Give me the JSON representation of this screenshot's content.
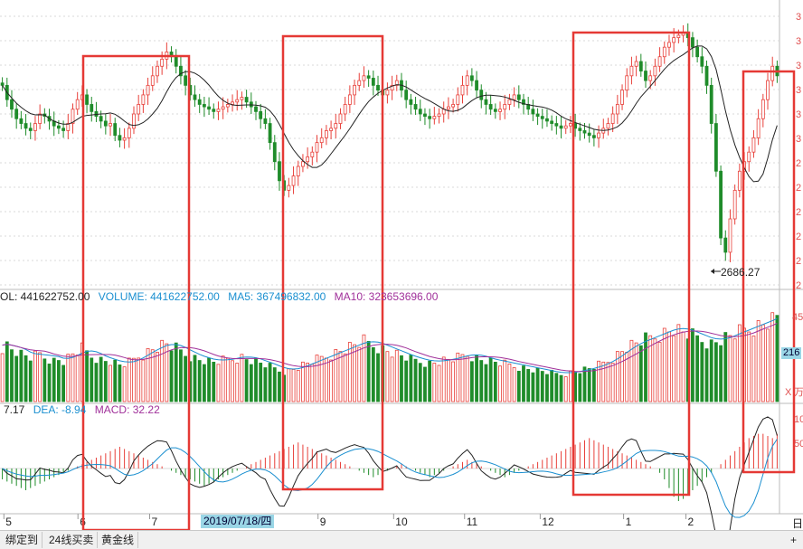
{
  "colors": {
    "up": "#e8403a",
    "down": "#1f8c2a",
    "ma_line": "#222222",
    "vol_ma5": "#1a8fd0",
    "vol_ma10": "#a0309a",
    "dea": "#1a8fd0",
    "highlight": "#e53935",
    "grid": "#d9d9d9",
    "axis_text": "#e05050"
  },
  "volume_legend": {
    "vol": "OL: 441622752.00",
    "volume": "VOLUME: 441622752.00",
    "ma5": "MA5: 367496832.00",
    "ma10": "MA10: 323653696.00"
  },
  "macd_legend": {
    "dif": "7.17",
    "dea": "DEA: -8.94",
    "macd": "MACD: 32.22"
  },
  "low_annotation": "2686.27",
  "right_axis": {
    "volume_top_label": "45",
    "volume_current": "216",
    "close_x": "X",
    "wan": "万",
    "macd_label_1": "10",
    "macd_label_2": "50",
    "corner": "日",
    "plus": "+"
  },
  "x_axis_labels": [
    {
      "label": "5",
      "pos": 0.005
    },
    {
      "label": "6",
      "pos": 0.1
    },
    {
      "label": "7",
      "pos": 0.192
    },
    {
      "label": "9",
      "pos": 0.408
    },
    {
      "label": "10",
      "pos": 0.505
    },
    {
      "label": "11",
      "pos": 0.596
    },
    {
      "label": "12",
      "pos": 0.693
    },
    {
      "label": "1",
      "pos": 0.8
    },
    {
      "label": "2",
      "pos": 0.88
    }
  ],
  "cursor_date": "2019/07/18/四",
  "bottom_tabs": [
    "绑定到",
    "24线买卖",
    "黄金线"
  ],
  "chart_data": {
    "type": "candlestick",
    "price_axis_tick_labels": [
      "3",
      "3",
      "3",
      "3",
      "3",
      "3",
      "2",
      "2",
      "2",
      "2",
      "2",
      "2"
    ],
    "low_marker": 2686.27,
    "highlight_boxes": 4,
    "price_series": [
      3040,
      3010,
      2990,
      2970,
      2960,
      2950,
      2945,
      2960,
      2980,
      2975,
      2965,
      2955,
      2950,
      2945,
      2960,
      2990,
      3010,
      3020,
      3000,
      2985,
      2975,
      2965,
      2955,
      2960,
      2935,
      2925,
      2930,
      2950,
      2980,
      3000,
      3020,
      3040,
      3060,
      3080,
      3095,
      3110,
      3100,
      3080,
      3060,
      3040,
      3020,
      3010,
      3000,
      2995,
      2990,
      2985,
      2990,
      2995,
      3000,
      3005,
      3010,
      3015,
      3005,
      2995,
      2985,
      2970,
      2960,
      2920,
      2880,
      2840,
      2820,
      2830,
      2850,
      2870,
      2880,
      2890,
      2900,
      2920,
      2930,
      2945,
      2950,
      2960,
      2980,
      3000,
      3020,
      3040,
      3050,
      3060,
      3055,
      3040,
      3030,
      3020,
      3030,
      3040,
      3050,
      3030,
      3010,
      3000,
      2990,
      2980,
      2975,
      2970,
      2975,
      2980,
      2990,
      2995,
      3000,
      3020,
      3040,
      3060,
      3050,
      3030,
      3010,
      3000,
      2990,
      2985,
      2990,
      3000,
      3010,
      3020,
      3010,
      3000,
      2990,
      2980,
      2975,
      2970,
      2965,
      2960,
      2955,
      2950,
      2955,
      2960,
      2950,
      2945,
      2940,
      2935,
      2930,
      2940,
      2950,
      2960,
      2980,
      3000,
      3030,
      3060,
      3080,
      3090,
      3070,
      3050,
      3060,
      3080,
      3100,
      3120,
      3130,
      3140,
      3145,
      3150,
      3140,
      3120,
      3100,
      3080,
      3040,
      2960,
      2860,
      2720,
      2690,
      2760,
      2820,
      2860,
      2880,
      2900,
      2930,
      2970,
      3010,
      3050,
      3080,
      3060
    ],
    "volume_series": [
      60,
      62,
      58,
      55,
      52,
      50,
      48,
      50,
      52,
      49,
      47,
      45,
      46,
      44,
      48,
      52,
      55,
      58,
      54,
      50,
      48,
      46,
      45,
      44,
      42,
      40,
      41,
      43,
      46,
      50,
      52,
      55,
      58,
      60,
      62,
      63,
      60,
      58,
      55,
      52,
      50,
      48,
      46,
      45,
      44,
      43,
      44,
      45,
      46,
      47,
      48,
      49,
      47,
      45,
      44,
      42,
      40,
      38,
      36,
      34,
      33,
      34,
      36,
      38,
      40,
      42,
      44,
      46,
      48,
      50,
      52,
      54,
      56,
      58,
      60,
      62,
      64,
      66,
      64,
      62,
      60,
      58,
      56,
      54,
      52,
      50,
      48,
      46,
      45,
      44,
      43,
      42,
      43,
      44,
      45,
      46,
      47,
      48,
      50,
      52,
      50,
      48,
      46,
      45,
      44,
      43,
      42,
      41,
      40,
      39,
      38,
      37,
      36,
      35,
      34,
      33,
      32,
      31,
      30,
      30,
      31,
      32,
      33,
      34,
      35,
      36,
      38,
      40,
      42,
      45,
      48,
      52,
      56,
      60,
      62,
      64,
      66,
      68,
      70,
      72,
      74,
      76,
      78,
      80,
      78,
      76,
      74,
      72,
      70,
      68,
      66,
      64,
      66,
      68,
      70,
      72,
      74,
      76,
      78,
      80,
      82,
      84,
      86,
      88,
      90,
      94
    ],
    "macd_series": [
      -10,
      -12,
      -14,
      -16,
      -18,
      -20,
      -18,
      -16,
      -14,
      -12,
      -10,
      -8,
      -6,
      -4,
      -2,
      0,
      2,
      4,
      6,
      8,
      10,
      12,
      14,
      16,
      18,
      20,
      18,
      16,
      14,
      12,
      10,
      8,
      6,
      4,
      2,
      0,
      -2,
      -4,
      -6,
      -8,
      -10,
      -12,
      -14,
      -16,
      -14,
      -12,
      -10,
      -8,
      -6,
      -4,
      -2,
      0,
      2,
      4,
      6,
      8,
      10,
      12,
      14,
      16,
      18,
      20,
      22,
      24,
      22,
      20,
      18,
      16,
      14,
      12,
      10,
      8,
      6,
      4,
      2,
      0,
      -2,
      -4,
      -6,
      -8,
      -6,
      -4,
      -2,
      0,
      2,
      4,
      2,
      0,
      -2,
      -4,
      -6,
      -8,
      -6,
      -4,
      -2,
      0,
      2,
      4,
      6,
      8,
      6,
      4,
      2,
      0,
      -2,
      -4,
      -6,
      -8,
      -6,
      -4,
      -2,
      0,
      2,
      4,
      6,
      8,
      10,
      12,
      14,
      16,
      18,
      20,
      22,
      24,
      26,
      28,
      26,
      24,
      22,
      20,
      18,
      16,
      14,
      12,
      10,
      8,
      6,
      4,
      2,
      0,
      -4,
      -10,
      -18,
      -26,
      -30,
      -28,
      -24,
      -20,
      -16,
      -12,
      -8,
      -4,
      0,
      4,
      8,
      12,
      16,
      20,
      24,
      28,
      30,
      32,
      32,
      30,
      28,
      32
    ]
  }
}
